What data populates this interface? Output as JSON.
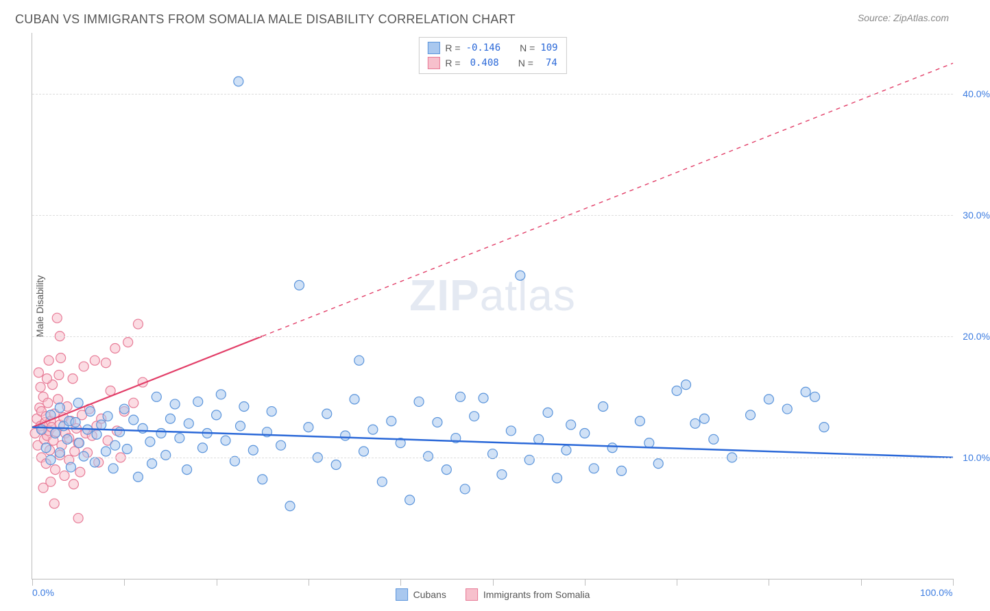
{
  "title": "CUBAN VS IMMIGRANTS FROM SOMALIA MALE DISABILITY CORRELATION CHART",
  "source": "Source: ZipAtlas.com",
  "ylabel": "Male Disability",
  "watermark_a": "ZIP",
  "watermark_b": "atlas",
  "chart": {
    "type": "scatter",
    "xlim": [
      0,
      100
    ],
    "ylim": [
      0,
      45
    ],
    "x_ticks": [
      0,
      10,
      20,
      30,
      40,
      50,
      60,
      70,
      80,
      90,
      100
    ],
    "x_tick_labels": {
      "0": "0.0%",
      "100": "100.0%"
    },
    "y_gridlines": [
      10,
      20,
      30,
      40
    ],
    "y_tick_labels": {
      "10": "10.0%",
      "20": "20.0%",
      "30": "30.0%",
      "40": "40.0%"
    },
    "background_color": "#ffffff",
    "grid_color": "#dddddd",
    "axis_color": "#bdbdbd",
    "tick_label_color": "#3b7be0",
    "title_color": "#555555",
    "title_fontsize": 18,
    "label_fontsize": 14,
    "marker_radius": 7,
    "marker_opacity": 0.55,
    "marker_stroke_width": 1.2
  },
  "series_a": {
    "name": "Cubans",
    "color_fill": "#a9c8ef",
    "color_stroke": "#5a94db",
    "trend_color": "#2a68d8",
    "trend_width": 2.5,
    "trend_y_at_x0": 12.5,
    "trend_y_at_x100": 10.0,
    "trend_dashed_after_x": null,
    "R": "-0.146",
    "N": "109",
    "points": [
      [
        1,
        12.3
      ],
      [
        1.5,
        10.8
      ],
      [
        2,
        13.5
      ],
      [
        2,
        9.8
      ],
      [
        2.5,
        12.0
      ],
      [
        3,
        14.1
      ],
      [
        3,
        10.4
      ],
      [
        3.4,
        12.6
      ],
      [
        3.8,
        11.5
      ],
      [
        4,
        13.0
      ],
      [
        4.2,
        9.2
      ],
      [
        4.7,
        12.9
      ],
      [
        5,
        14.5
      ],
      [
        5.1,
        11.2
      ],
      [
        5.6,
        10.1
      ],
      [
        6,
        12.3
      ],
      [
        6.3,
        13.8
      ],
      [
        6.8,
        9.6
      ],
      [
        7,
        11.9
      ],
      [
        7.5,
        12.7
      ],
      [
        8,
        10.5
      ],
      [
        8.2,
        13.4
      ],
      [
        8.8,
        9.1
      ],
      [
        9,
        11.0
      ],
      [
        9.5,
        12.1
      ],
      [
        10,
        14.0
      ],
      [
        10.3,
        10.7
      ],
      [
        11,
        13.1
      ],
      [
        11.5,
        8.4
      ],
      [
        12,
        12.4
      ],
      [
        12.8,
        11.3
      ],
      [
        13,
        9.5
      ],
      [
        13.5,
        15.0
      ],
      [
        14,
        12.0
      ],
      [
        14.5,
        10.2
      ],
      [
        15,
        13.2
      ],
      [
        15.5,
        14.4
      ],
      [
        16,
        11.6
      ],
      [
        16.8,
        9.0
      ],
      [
        17,
        12.8
      ],
      [
        18,
        14.6
      ],
      [
        18.5,
        10.8
      ],
      [
        19,
        12.0
      ],
      [
        20,
        13.5
      ],
      [
        20.5,
        15.2
      ],
      [
        21,
        11.4
      ],
      [
        22,
        9.7
      ],
      [
        22.6,
        12.6
      ],
      [
        23,
        14.2
      ],
      [
        24,
        10.6
      ],
      [
        25,
        8.2
      ],
      [
        25.5,
        12.1
      ],
      [
        26,
        13.8
      ],
      [
        27,
        11.0
      ],
      [
        28,
        6.0
      ],
      [
        29,
        24.2
      ],
      [
        22.4,
        41.0
      ],
      [
        30,
        12.5
      ],
      [
        31,
        10.0
      ],
      [
        32,
        13.6
      ],
      [
        33,
        9.4
      ],
      [
        34,
        11.8
      ],
      [
        35,
        14.8
      ],
      [
        35.5,
        18.0
      ],
      [
        36,
        10.5
      ],
      [
        37,
        12.3
      ],
      [
        38,
        8.0
      ],
      [
        39,
        13.0
      ],
      [
        40,
        11.2
      ],
      [
        41,
        6.5
      ],
      [
        42,
        14.6
      ],
      [
        43,
        10.1
      ],
      [
        44,
        12.9
      ],
      [
        45,
        9.0
      ],
      [
        46,
        11.6
      ],
      [
        47,
        7.4
      ],
      [
        48,
        13.4
      ],
      [
        49,
        14.9
      ],
      [
        50,
        10.3
      ],
      [
        51,
        8.6
      ],
      [
        52,
        12.2
      ],
      [
        53,
        25.0
      ],
      [
        54,
        9.8
      ],
      [
        55,
        11.5
      ],
      [
        56,
        13.7
      ],
      [
        57,
        8.3
      ],
      [
        58,
        10.6
      ],
      [
        60,
        12.0
      ],
      [
        61,
        9.1
      ],
      [
        62,
        14.2
      ],
      [
        63,
        10.8
      ],
      [
        64,
        8.9
      ],
      [
        66,
        13.0
      ],
      [
        67,
        11.2
      ],
      [
        68,
        9.5
      ],
      [
        70,
        15.5
      ],
      [
        71,
        16.0
      ],
      [
        72,
        12.8
      ],
      [
        74,
        11.5
      ],
      [
        76,
        10.0
      ],
      [
        78,
        13.5
      ],
      [
        80,
        14.8
      ],
      [
        82,
        14.0
      ],
      [
        84,
        15.4
      ],
      [
        85,
        15.0
      ],
      [
        86,
        12.5
      ],
      [
        73,
        13.2
      ],
      [
        58.5,
        12.7
      ],
      [
        46.5,
        15.0
      ]
    ]
  },
  "series_b": {
    "name": "Immigrants from Somalia",
    "color_fill": "#f7c0cc",
    "color_stroke": "#e77a96",
    "trend_color": "#e23e68",
    "trend_width": 2.2,
    "trend_y_at_x0": 12.5,
    "trend_y_at_x100": 42.5,
    "trend_dashed_after_x": 25,
    "R": "0.408",
    "N": "74",
    "points": [
      [
        0.3,
        12.0
      ],
      [
        0.5,
        13.2
      ],
      [
        0.6,
        11.0
      ],
      [
        0.8,
        14.1
      ],
      [
        0.9,
        12.6
      ],
      [
        1.0,
        10.0
      ],
      [
        1.0,
        13.8
      ],
      [
        1.1,
        12.3
      ],
      [
        1.2,
        15.0
      ],
      [
        1.3,
        11.5
      ],
      [
        1.4,
        12.9
      ],
      [
        1.5,
        9.5
      ],
      [
        1.5,
        13.4
      ],
      [
        1.6,
        11.8
      ],
      [
        1.7,
        14.5
      ],
      [
        1.8,
        12.2
      ],
      [
        1.9,
        10.6
      ],
      [
        2.0,
        13.0
      ],
      [
        2.0,
        8.0
      ],
      [
        2.1,
        12.5
      ],
      [
        2.2,
        16.0
      ],
      [
        2.3,
        11.4
      ],
      [
        2.4,
        13.6
      ],
      [
        2.5,
        9.0
      ],
      [
        2.6,
        12.1
      ],
      [
        2.8,
        14.8
      ],
      [
        3.0,
        10.2
      ],
      [
        3.0,
        12.7
      ],
      [
        3.2,
        11.0
      ],
      [
        3.4,
        13.3
      ],
      [
        3.5,
        8.5
      ],
      [
        3.6,
        12.0
      ],
      [
        3.8,
        14.2
      ],
      [
        4.0,
        11.6
      ],
      [
        4.0,
        9.8
      ],
      [
        4.2,
        13.0
      ],
      [
        4.4,
        16.5
      ],
      [
        4.6,
        10.5
      ],
      [
        4.8,
        12.4
      ],
      [
        5.0,
        11.2
      ],
      [
        5.2,
        8.8
      ],
      [
        5.4,
        13.5
      ],
      [
        5.6,
        17.5
      ],
      [
        5.8,
        12.0
      ],
      [
        6.0,
        10.4
      ],
      [
        6.2,
        14.0
      ],
      [
        6.5,
        11.8
      ],
      [
        6.8,
        18.0
      ],
      [
        7.0,
        12.6
      ],
      [
        7.2,
        9.6
      ],
      [
        7.5,
        13.2
      ],
      [
        8.0,
        17.8
      ],
      [
        8.2,
        11.4
      ],
      [
        8.5,
        15.5
      ],
      [
        9.0,
        19.0
      ],
      [
        9.2,
        12.2
      ],
      [
        9.6,
        10.0
      ],
      [
        10,
        13.8
      ],
      [
        10.4,
        19.5
      ],
      [
        11,
        14.5
      ],
      [
        11.5,
        21.0
      ],
      [
        12,
        16.2
      ],
      [
        2.7,
        21.5
      ],
      [
        3.1,
        18.2
      ],
      [
        1.8,
        18.0
      ],
      [
        0.7,
        17.0
      ],
      [
        4.5,
        7.8
      ],
      [
        5.0,
        5.0
      ],
      [
        1.2,
        7.5
      ],
      [
        2.4,
        6.2
      ],
      [
        3.0,
        20.0
      ],
      [
        0.9,
        15.8
      ],
      [
        1.6,
        16.5
      ],
      [
        2.9,
        16.8
      ]
    ]
  },
  "legend_bottom": {
    "a": "Cubans",
    "b": "Immigrants from Somalia"
  },
  "legend_top": {
    "r_label": "R =",
    "n_label": "N ="
  }
}
